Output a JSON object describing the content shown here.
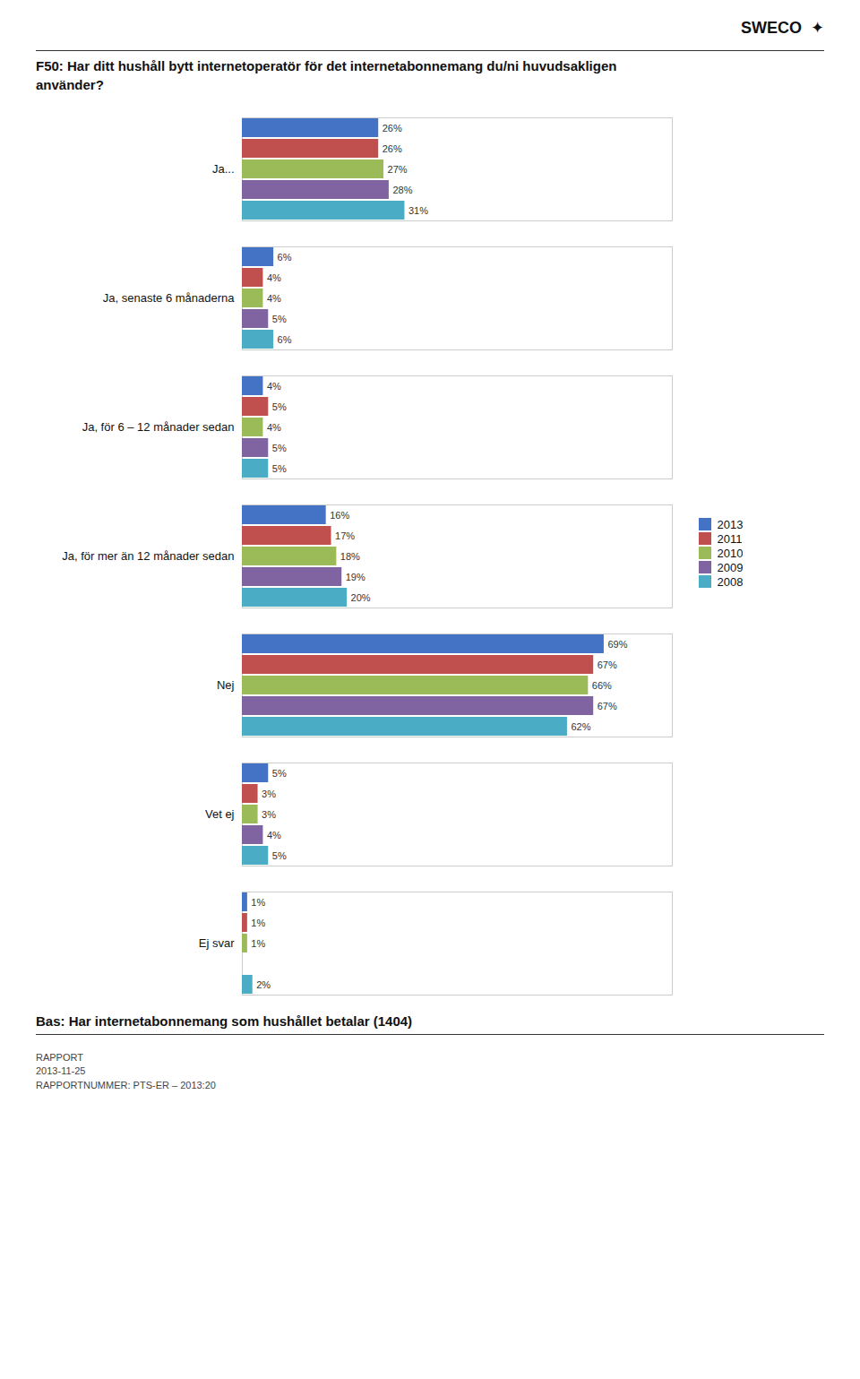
{
  "chart_data": {
    "type": "bar",
    "orientation": "horizontal",
    "title": "F50: Har ditt hushåll bytt internetoperatör för det internetabonnemang du/ni huvudsakligen\nanvänder?",
    "annotations": [
      "Bas: Har internetabonnemang som hushållet betalar (1404)",
      "RAPPORT\n2013-11-25\nRAPPORTNUMMER: PTS-ER – 2013:20",
      "SWECO",
      "✦"
    ],
    "categories": [
      "Ja...",
      "Ja, senaste 6 månaderna",
      "Ja, för 6 – 12 månader sedan",
      "Ja, för mer än 12 månader sedan",
      "Nej",
      "Vet ej",
      "Ej svar"
    ],
    "series": [
      {
        "name": "2013",
        "color": "#4472C4",
        "values": [
          26,
          6,
          4,
          16,
          69,
          5,
          1
        ],
        "value_labels": [
          "26%",
          "6%",
          "4%",
          "16%",
          "69%",
          "5%",
          "1%"
        ]
      },
      {
        "name": "2011",
        "color": "#C0504D",
        "values": [
          26,
          4,
          5,
          17,
          67,
          3,
          1
        ],
        "value_labels": [
          "26%",
          "4%",
          "5%",
          "17%",
          "67%",
          "3%",
          "1%"
        ]
      },
      {
        "name": "2010",
        "color": "#9BBB59",
        "values": [
          27,
          4,
          4,
          18,
          66,
          3,
          1
        ],
        "value_labels": [
          "27%",
          "4%",
          "4%",
          "18%",
          "66%",
          "3%",
          "1%"
        ]
      },
      {
        "name": "2009",
        "color": "#8064A2",
        "values": [
          28,
          5,
          5,
          19,
          67,
          4,
          0
        ],
        "value_labels": [
          "28%",
          "5%",
          "5%",
          "19%",
          "67%",
          "4%",
          null
        ]
      },
      {
        "name": "2008",
        "color": "#4BACC6",
        "values": [
          31,
          6,
          5,
          20,
          62,
          5,
          2
        ],
        "value_labels": [
          "31%",
          "6%",
          "5%",
          "20%",
          "62%",
          "5%",
          "2%"
        ]
      }
    ],
    "xlim": [
      0,
      82
    ],
    "tick_labels": "y",
    "data_labels": true,
    "legend": "right",
    "grid": false
  }
}
